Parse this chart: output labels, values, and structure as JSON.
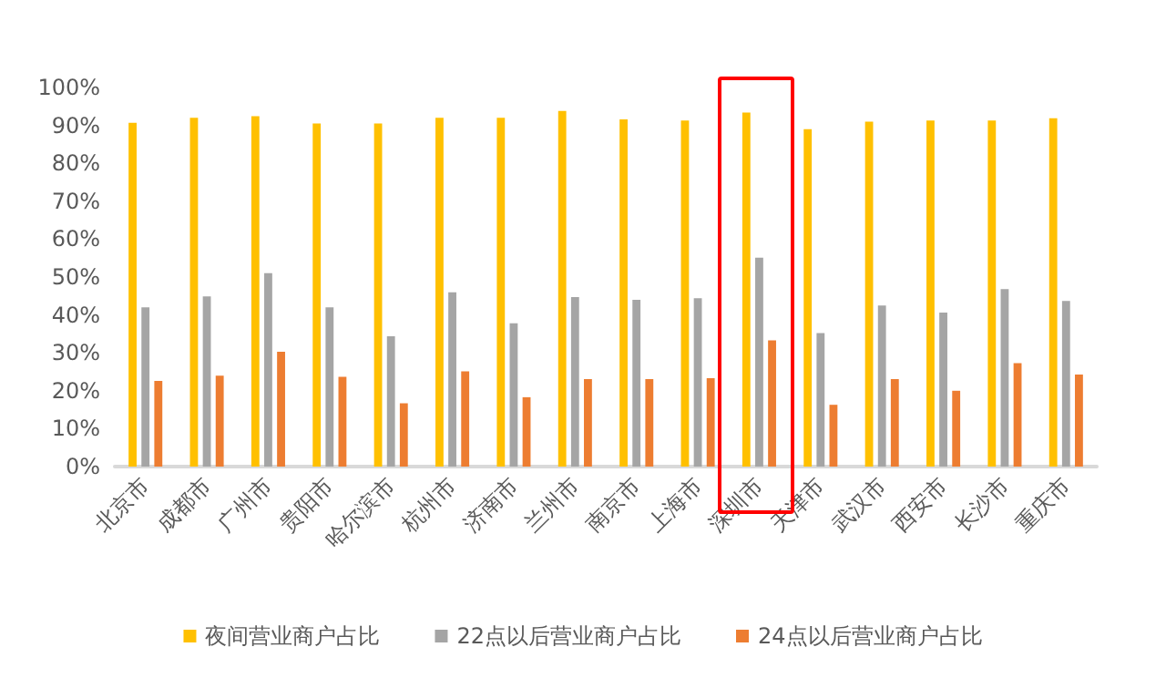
{
  "chart_data": {
    "type": "bar",
    "categories": [
      "北京市",
      "成都市",
      "广州市",
      "贵阳市",
      "哈尔滨市",
      "杭州市",
      "济南市",
      "兰州市",
      "南京市",
      "上海市",
      "深圳市",
      "天津市",
      "武汉市",
      "西安市",
      "长沙市",
      "重庆市"
    ],
    "series": [
      {
        "name": "夜间营业商户占比",
        "color": "#ffc000",
        "values": [
          90.7,
          92,
          92.4,
          90.5,
          90.5,
          92,
          92,
          93.8,
          91.6,
          91.3,
          93.4,
          89,
          91,
          91.3,
          91.3,
          91.9
        ]
      },
      {
        "name": "22点以后营业商户占比",
        "color": "#a5a5a5",
        "values": [
          42,
          44.9,
          51,
          42,
          34.4,
          46,
          37.8,
          44.7,
          44,
          44.4,
          55.1,
          35.2,
          42.5,
          40.6,
          46.8,
          43.7
        ]
      },
      {
        "name": "24点以后营业商户占比",
        "color": "#ed7d31",
        "values": [
          22.6,
          24,
          30.3,
          23.7,
          16.7,
          25.1,
          18.3,
          23.1,
          23.1,
          23.3,
          33.3,
          16.3,
          23.1,
          20,
          27.3,
          24.3
        ]
      }
    ],
    "ylim": [
      0,
      100
    ],
    "yticks": [
      {
        "value": 0,
        "label": "0%"
      },
      {
        "value": 10,
        "label": "10%"
      },
      {
        "value": 20,
        "label": "20%"
      },
      {
        "value": 30,
        "label": "30%"
      },
      {
        "value": 40,
        "label": "40%"
      },
      {
        "value": 50,
        "label": "50%"
      },
      {
        "value": 60,
        "label": "60%"
      },
      {
        "value": 70,
        "label": "70%"
      },
      {
        "value": 80,
        "label": "80%"
      },
      {
        "value": 90,
        "label": "90%"
      },
      {
        "value": 100,
        "label": "100%"
      }
    ],
    "grid": false,
    "legend": "bottom"
  }
}
